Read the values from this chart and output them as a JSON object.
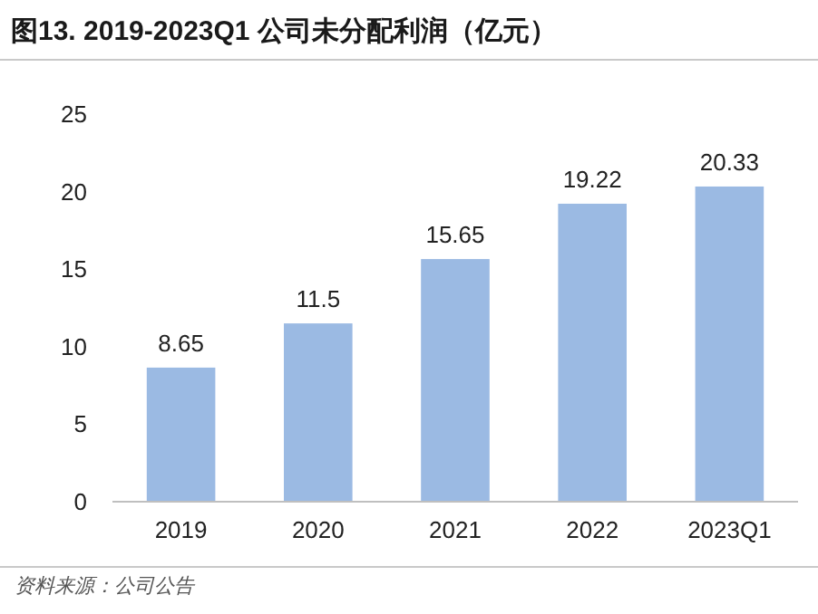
{
  "chart_data": {
    "type": "bar",
    "title": "图13. 2019-2023Q1 公司未分配利润（亿元）",
    "categories": [
      "2019",
      "2020",
      "2021",
      "2022",
      "2023Q1"
    ],
    "values": [
      8.65,
      11.5,
      15.65,
      19.22,
      20.33
    ],
    "color": "#9bbae3",
    "ylim": [
      0,
      25
    ],
    "yticks": [
      0,
      5,
      10,
      15,
      20,
      25
    ],
    "data_labels": true,
    "annotations": [
      "资料来源：公司公告"
    ]
  }
}
